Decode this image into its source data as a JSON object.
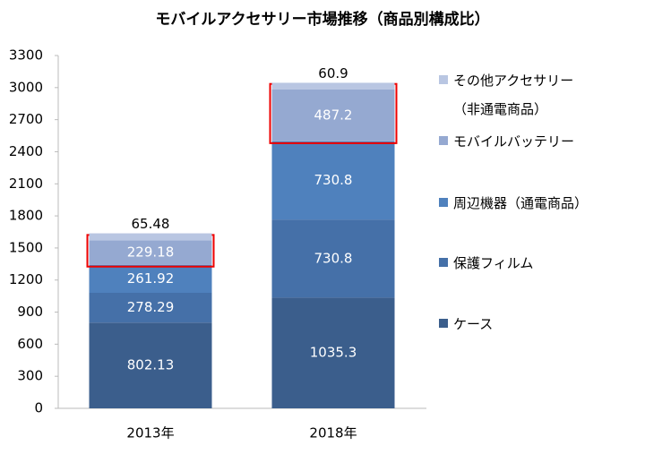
{
  "chart_data": {
    "type": "stacked_bar",
    "title": "モバイルアクセサリー市場推移（商品別構成比）",
    "categories": [
      "2013年",
      "2018年"
    ],
    "series": [
      {
        "name": "ケース",
        "color": "#3b5e8c",
        "values": [
          802.13,
          1035.3
        ]
      },
      {
        "name": "保護フィルム",
        "color": "#4570a8",
        "values": [
          278.29,
          730.8
        ]
      },
      {
        "name": "周辺機器（通電商品）",
        "color": "#4f81bd",
        "values": [
          261.92,
          730.8
        ]
      },
      {
        "name": "モバイルバッテリー",
        "color": "#95a9d1",
        "values": [
          229.18,
          487.2
        ]
      },
      {
        "name": "その他アクセサリー\n（非通電商品）",
        "color": "#b9c6e2",
        "values": [
          65.48,
          60.9
        ]
      }
    ],
    "ylim": [
      0,
      3300
    ],
    "yticks": [
      0,
      300,
      600,
      900,
      1200,
      1500,
      1800,
      2100,
      2400,
      2700,
      3000,
      3300
    ],
    "grid": false
  }
}
